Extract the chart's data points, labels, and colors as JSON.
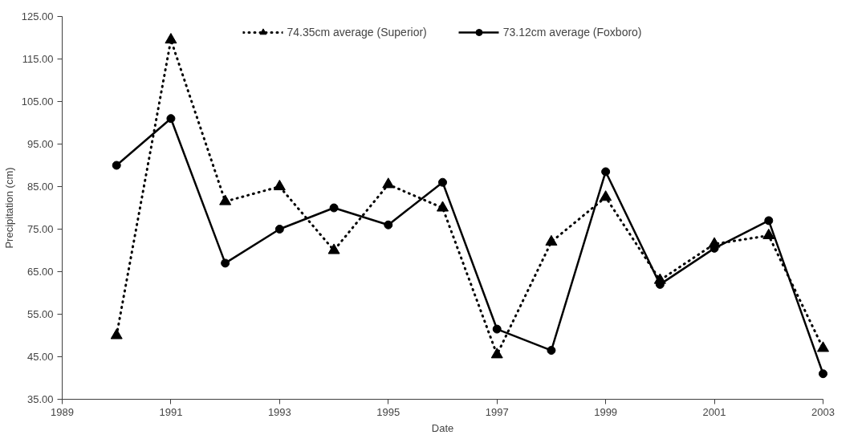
{
  "chart_data": {
    "type": "line",
    "xlabel": "Date",
    "ylabel": "Precipitation (cm)",
    "x": [
      1990,
      1991,
      1992,
      1993,
      1994,
      1995,
      1996,
      1997,
      1998,
      1999,
      2000,
      2001,
      2002,
      2003
    ],
    "xlim": [
      1989,
      2003
    ],
    "xticks": [
      1989,
      1991,
      1993,
      1995,
      1997,
      1999,
      2001,
      2003
    ],
    "ylim": [
      35,
      125
    ],
    "yticks": [
      {
        "value": 35,
        "label": "35.00"
      },
      {
        "value": 45,
        "label": "45.00"
      },
      {
        "value": 55,
        "label": "55.00"
      },
      {
        "value": 65,
        "label": "65.00"
      },
      {
        "value": 75,
        "label": "75.00"
      },
      {
        "value": 85,
        "label": "85.00"
      },
      {
        "value": 95,
        "label": "95.00"
      },
      {
        "value": 105,
        "label": "105.00"
      },
      {
        "value": 115,
        "label": "115.00"
      },
      {
        "value": 125,
        "label": "125.00"
      }
    ],
    "grid": false,
    "legend": "top",
    "series": [
      {
        "name": "74.35cm average (Superior)",
        "color": "#000000",
        "marker": "triangle",
        "line_style": "dotted",
        "values": [
          50,
          119.5,
          81.5,
          85,
          70,
          85.5,
          80,
          45.5,
          72,
          82.5,
          63,
          71.5,
          73.5,
          47
        ]
      },
      {
        "name": "73.12cm average (Foxboro)",
        "color": "#000000",
        "marker": "circle",
        "line_style": "solid",
        "values": [
          90,
          101,
          67,
          75,
          80,
          76,
          86,
          51.5,
          46.5,
          88.5,
          62,
          70.5,
          77,
          41
        ]
      }
    ]
  }
}
